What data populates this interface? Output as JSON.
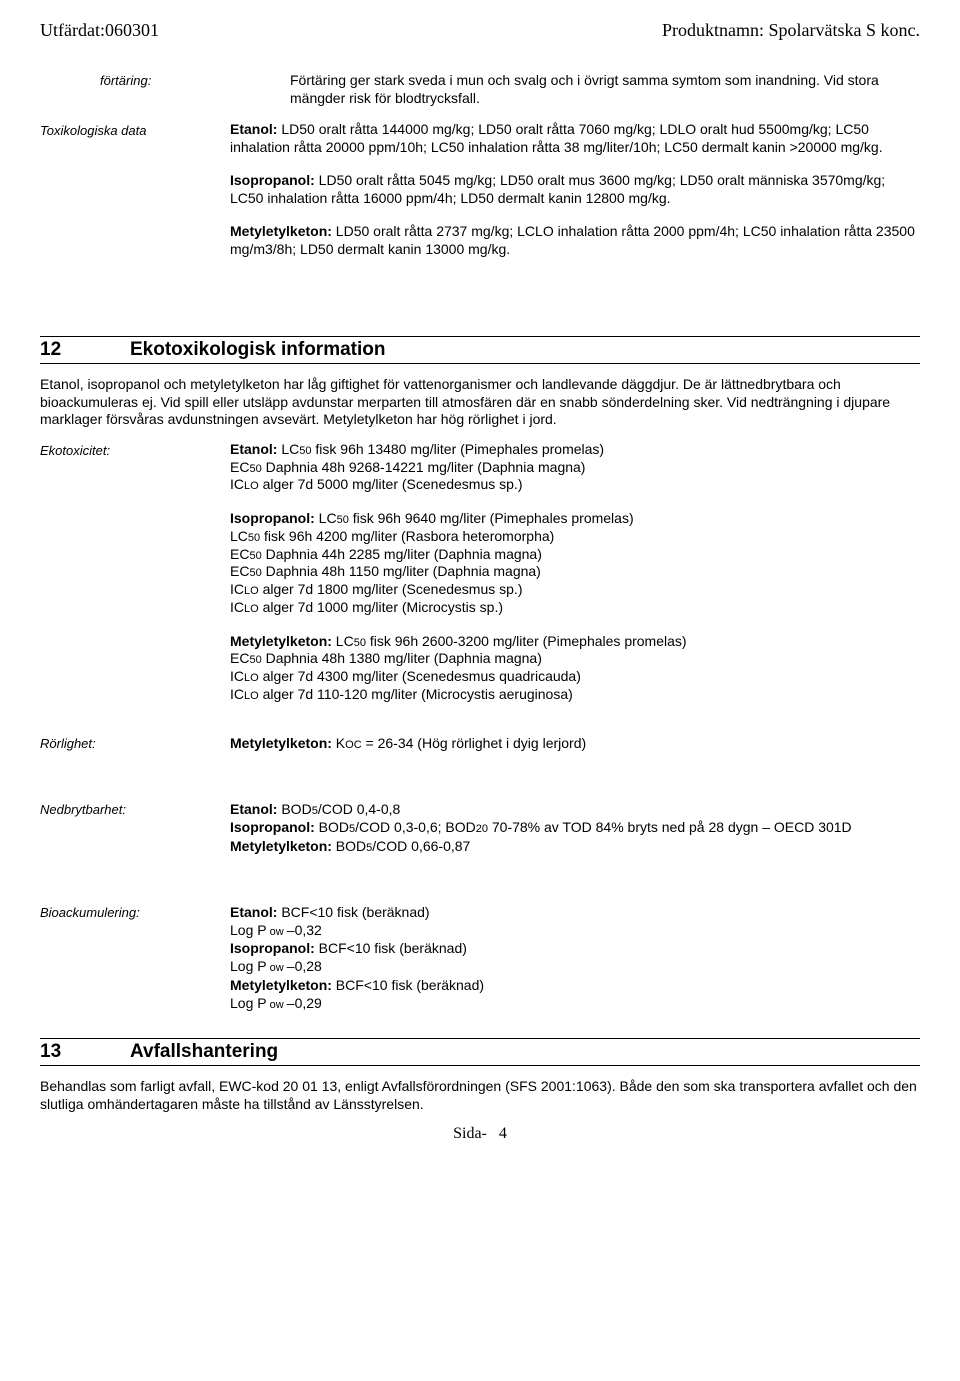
{
  "header": {
    "left": "Utfärdat:060301",
    "right": "Produktnamn: Spolarvätska S konc."
  },
  "fortaring": {
    "label": "förtäring:",
    "text": "Förtäring ger stark sveda i mun och svalg och i övrigt samma symtom som inandning. Vid stora mängder risk för blodtrycksfall."
  },
  "toxdata": {
    "label": "Toxikologiska data",
    "etanol": {
      "name": "Etanol:",
      "text": " LD50 oralt råtta 144000 mg/kg; LD50 oralt råtta 7060 mg/kg; LDLO oralt hud 5500mg/kg; LC50 inhalation råtta 20000 ppm/10h; LC50 inhalation råtta 38 mg/liter/10h; LC50 dermalt kanin >20000 mg/kg."
    },
    "isopropanol": {
      "name": "Isopropanol:",
      "text": " LD50 oralt råtta 5045 mg/kg; LD50 oralt mus 3600 mg/kg; LD50 oralt människa 3570mg/kg; LC50 inhalation råtta 16000 ppm/4h; LD50 dermalt kanin 12800 mg/kg."
    },
    "metyl": {
      "name": "Metyletylketon:",
      "text": " LD50 oralt råtta 2737 mg/kg;  LCLO inhalation råtta 2000 ppm/4h; LC50 inhalation råtta 23500 mg/m3/8h; LD50 dermalt kanin 13000 mg/kg."
    }
  },
  "section12": {
    "num": "12",
    "title": "Ekotoxikologisk information",
    "intro": "Etanol, isopropanol och metyletylketon har låg giftighet för vattenorganismer och landlevande däggdjur. De är lättnedbrytbara och bioackumuleras ej. Vid spill eller utsläpp avdunstar merparten till atmosfären där en snabb sönderdelning sker. Vid nedträngning i djupare marklager försvåras avdunstningen avsevärt. Metyletylketon har hög rörlighet i jord."
  },
  "ekotox": {
    "label": "Ekotoxicitet:",
    "etanol": {
      "l1a": "Etanol:",
      "l1b": " LC",
      "l1c": "50",
      "l1d": " fisk 96h 13480 mg/liter (Pimephales promelas)",
      "l2a": "EC",
      "l2b": "50",
      "l2c": " Daphnia 48h 9268-14221 mg/liter (Daphnia magna)",
      "l3a": "IC",
      "l3b": "LO",
      "l3c": " alger 7d 5000 mg/liter (Scenedesmus sp.)"
    },
    "iso": {
      "l1a": "Isopropanol:",
      "l1b": " LC",
      "l1c": "50",
      "l1d": " fisk 96h 9640 mg/liter (Pimephales promelas)",
      "l2a": "LC",
      "l2b": "50",
      "l2c": " fisk 96h 4200 mg/liter (Rasbora heteromorpha)",
      "l3a": "EC",
      "l3b": "50",
      "l3c": " Daphnia 44h 2285 mg/liter (Daphnia magna)",
      "l4a": "EC",
      "l4b": "50",
      "l4c": " Daphnia 48h 1150 mg/liter (Daphnia magna)",
      "l5a": "IC",
      "l5b": "LO",
      "l5c": " alger 7d 1800 mg/liter (Scenedesmus sp.)",
      "l6a": "IC",
      "l6b": "LO",
      "l6c": " alger 7d 1000 mg/liter (Microcystis sp.)"
    },
    "met": {
      "l1a": "Metyletylketon:",
      "l1b": " LC",
      "l1c": "50",
      "l1d": " fisk 96h 2600-3200 mg/liter (Pimephales promelas)",
      "l2a": "EC",
      "l2b": "50",
      "l2c": " Daphnia 48h 1380 mg/liter (Daphnia magna)",
      "l3a": "IC",
      "l3b": "LO",
      "l3c": " alger 7d 4300 mg/liter (Scenedesmus quadricauda)",
      "l4a": "IC",
      "l4b": "LO",
      "l4c": " alger 7d 110-120 mg/liter (Microcystis aeruginosa)"
    }
  },
  "rorlighet": {
    "label": "Rörlighet:",
    "name": "Metyletylketon:",
    "t1": " K",
    "t2": "OC",
    "t3": " = 26-34 (Hög rörlighet i dyig lerjord)"
  },
  "nedbryt": {
    "label": "Nedbrytbarhet:",
    "l1a": "Etanol:",
    "l1b": " BOD",
    "l1c": "5",
    "l1d": "/COD 0,4-0,8",
    "l2a": "Isopropanol:",
    "l2b": " BOD",
    "l2c": "5",
    "l2d": "/COD 0,3-0,6; BOD",
    "l2e": "20",
    "l2f": " 70-78% av TOD 84% bryts ned på 28 dygn – OECD 301D",
    "l3a": " Metyletylketon:",
    "l3b": " BOD",
    "l3c": "5",
    "l3d": "/COD 0,66-0,87"
  },
  "bioack": {
    "label": "Bioackumulering:",
    "l1a": "Etanol:",
    "l1b": " BCF<10 fisk (beräknad)",
    "l2a": "Log P",
    "l2b": " ow ",
    "l2c": "–0,32",
    "l3a": " Isopropanol:",
    "l3b": " BCF<10 fisk (beräknad)",
    "l4a": "Log P",
    "l4b": " ow ",
    "l4c": "–0,28",
    "l5a": "Metyletylketon:",
    "l5b": " BCF<10 fisk (beräknad)",
    "l6a": "Log P",
    "l6b": " ow ",
    "l6c": "–0,29"
  },
  "section13": {
    "num": "13",
    "title": "Avfallshantering",
    "text": "Behandlas som farligt avfall, EWC-kod 20 01 13, enligt Avfallsförordningen (SFS 2001:1063). Både den som ska transportera avfallet och den slutliga omhändertagaren måste ha tillstånd av Länsstyrelsen."
  },
  "footer": {
    "prefix": "Sida-",
    "num": "4"
  }
}
